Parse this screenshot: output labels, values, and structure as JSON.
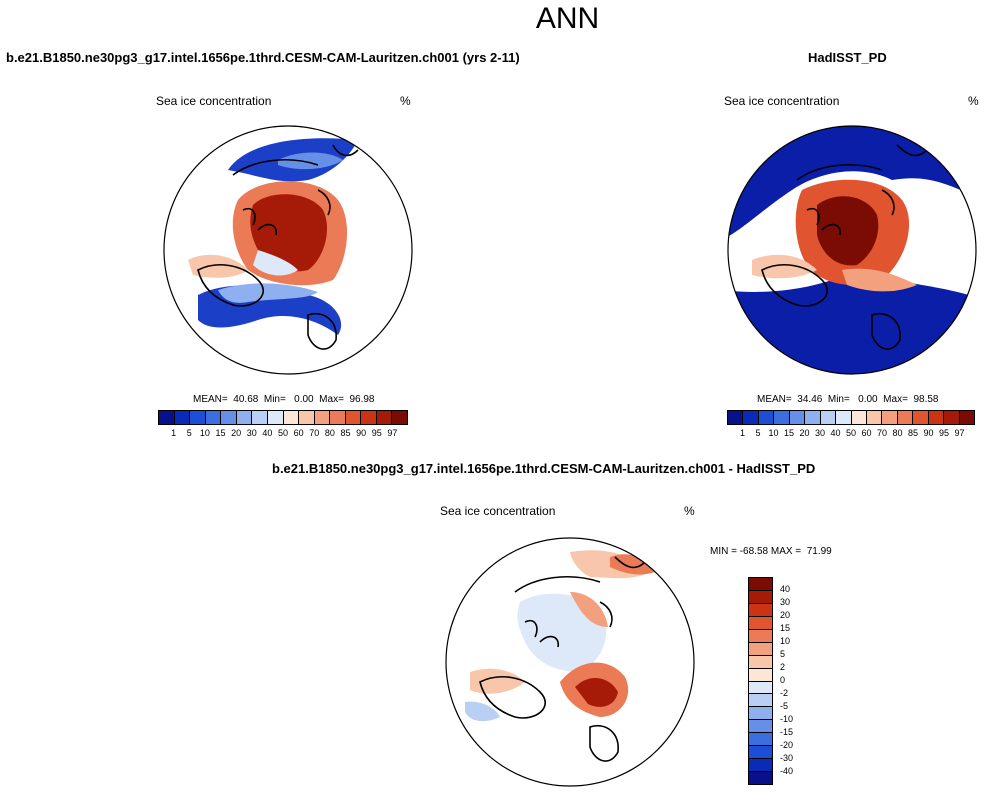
{
  "figure": {
    "title": "ANN"
  },
  "panel_model": {
    "case_title": "b.e21.B1850.ne30pg3_g17.intel.1656pe.1thrd.CESM-CAM-Lauritzen.ch001 (yrs 2-11)",
    "variable": "Sea ice concentration",
    "units": "%",
    "stats": "MEAN=  40.68  Min=   0.00  Max=  96.98"
  },
  "panel_obs": {
    "case_title": "HadISST_PD",
    "variable": "Sea ice concentration",
    "units": "%",
    "stats": "MEAN=  34.46  Min=   0.00  Max=  98.58"
  },
  "panel_diff": {
    "case_title": "b.e21.B1850.ne30pg3_g17.intel.1656pe.1thrd.CESM-CAM-Lauritzen.ch001 - HadISST_PD",
    "variable": "Sea ice concentration",
    "units": "%",
    "stats": "MIN = -68.58 MAX =  71.99"
  },
  "colorbar_abs": {
    "levels": [
      "1",
      "5",
      "10",
      "15",
      "20",
      "30",
      "40",
      "50",
      "60",
      "70",
      "80",
      "85",
      "90",
      "95",
      "97"
    ],
    "colors": [
      "#08108a",
      "#0a2ab8",
      "#1c4fd6",
      "#3b6fe0",
      "#6690e8",
      "#8fb0ee",
      "#b9cff3",
      "#dde8f8",
      "#fde6d6",
      "#f8c6aa",
      "#f2a07e",
      "#eb7a56",
      "#e05530",
      "#cc3314",
      "#a61a08",
      "#7a0c04"
    ]
  },
  "colorbar_diff": {
    "levels": [
      "40",
      "30",
      "20",
      "15",
      "10",
      "5",
      "2",
      "0",
      "-2",
      "-5",
      "-10",
      "-15",
      "-20",
      "-30",
      "-40"
    ],
    "colors": [
      "#7a0c04",
      "#a61a08",
      "#cc3314",
      "#e05530",
      "#eb7a56",
      "#f2a07e",
      "#f8c6aa",
      "#fde6d6",
      "#dde8f8",
      "#b9cff3",
      "#8fb0ee",
      "#6690e8",
      "#3b6fe0",
      "#1c4fd6",
      "#0a2ab8",
      "#08108a"
    ]
  }
}
